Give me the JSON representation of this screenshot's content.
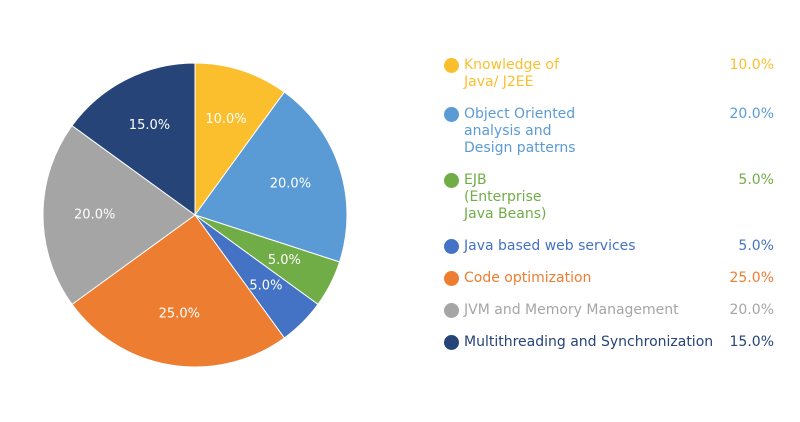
{
  "chart_data": {
    "type": "pie",
    "categories": [
      "Knowledge of\nJava/ J2EE",
      "Object Oriented\nanalysis and\nDesign patterns",
      "EJB\n(Enterprise\nJava Beans)",
      "Java based web services",
      "Code optimization",
      "JVM and Memory Management",
      "Multithreading and Synchronization"
    ],
    "values": [
      10,
      20,
      5,
      5,
      25,
      20,
      15
    ],
    "value_labels": [
      "10.0%",
      "20.0%",
      "5.0%",
      "5.0%",
      "25.0%",
      "20.0%",
      "15.0%"
    ],
    "colors": [
      "#fbbf2d",
      "#5b9bd5",
      "#70ad47",
      "#4472c4",
      "#ed7d31",
      "#a5a5a5",
      "#264478"
    ],
    "legend": "right"
  }
}
